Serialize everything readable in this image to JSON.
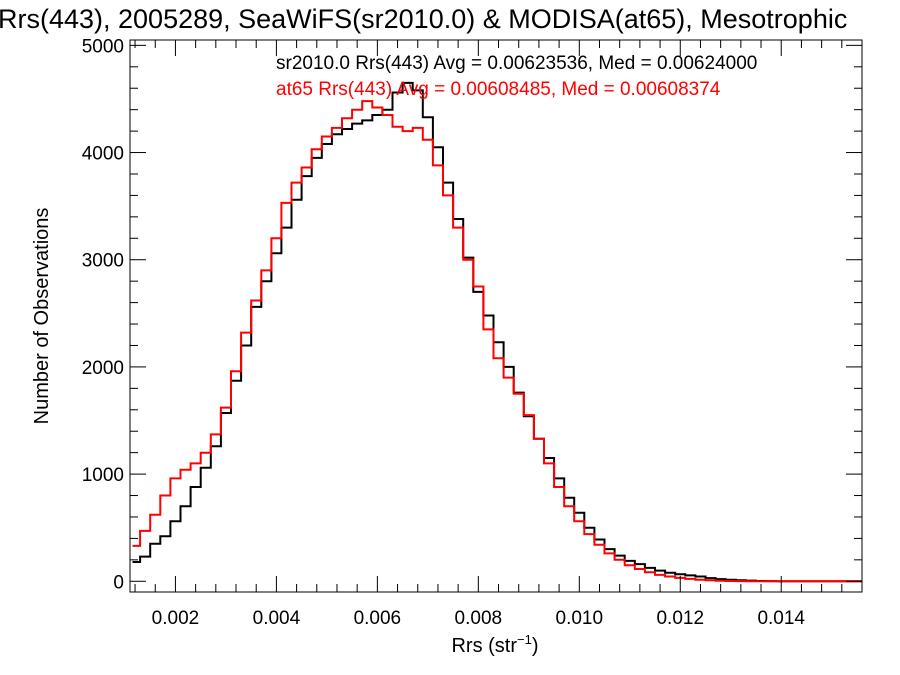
{
  "chart_data": {
    "type": "line",
    "title": "Rrs(443), 2005289, SeaWiFS(sr2010.0) & MODISA(at65), Mesotrophic",
    "xlabel": "Rrs (str",
    "xlabel_sup": "−1",
    "xlabel_end": ")",
    "ylabel": "Number of Observations",
    "xlim": [
      0.0011,
      0.0156
    ],
    "ylim": [
      -100,
      5050
    ],
    "xticks": [
      {
        "value": 0.002,
        "label": "0.002"
      },
      {
        "value": 0.004,
        "label": "0.004"
      },
      {
        "value": 0.006,
        "label": "0.006"
      },
      {
        "value": 0.008,
        "label": "0.008"
      },
      {
        "value": 0.01,
        "label": "0.010"
      },
      {
        "value": 0.012,
        "label": "0.012"
      },
      {
        "value": 0.014,
        "label": "0.014"
      }
    ],
    "yticks": [
      {
        "value": 0,
        "label": "0"
      },
      {
        "value": 1000,
        "label": "1000"
      },
      {
        "value": 2000,
        "label": "2000"
      },
      {
        "value": 3000,
        "label": "3000"
      },
      {
        "value": 4000,
        "label": "4000"
      },
      {
        "value": 5000,
        "label": "5000"
      }
    ],
    "annotations": [
      {
        "text": "sr2010.0 Rrs(443) Avg = 0.00623536, Med = 0.00624000",
        "color": "#000000"
      },
      {
        "text": "at65 Rrs(443) Avg = 0.00608485, Med = 0.00608374",
        "color": "#ff0000"
      }
    ],
    "series": [
      {
        "color": "#000000",
        "points": [
          [
            0.00115,
            180
          ],
          [
            0.0013,
            230
          ],
          [
            0.0015,
            350
          ],
          [
            0.0017,
            420
          ],
          [
            0.0019,
            560
          ],
          [
            0.0021,
            700
          ],
          [
            0.0023,
            880
          ],
          [
            0.0025,
            1060
          ],
          [
            0.0027,
            1260
          ],
          [
            0.0029,
            1570
          ],
          [
            0.0031,
            1870
          ],
          [
            0.0033,
            2200
          ],
          [
            0.0035,
            2560
          ],
          [
            0.0037,
            2800
          ],
          [
            0.0039,
            3060
          ],
          [
            0.0041,
            3300
          ],
          [
            0.0043,
            3560
          ],
          [
            0.0045,
            3780
          ],
          [
            0.0047,
            3950
          ],
          [
            0.0049,
            4080
          ],
          [
            0.0051,
            4170
          ],
          [
            0.0053,
            4220
          ],
          [
            0.0055,
            4270
          ],
          [
            0.0057,
            4300
          ],
          [
            0.0059,
            4350
          ],
          [
            0.0061,
            4400
          ],
          [
            0.0063,
            4560
          ],
          [
            0.0065,
            4650
          ],
          [
            0.0067,
            4580
          ],
          [
            0.0069,
            4330
          ],
          [
            0.0071,
            4050
          ],
          [
            0.0073,
            3720
          ],
          [
            0.0075,
            3380
          ],
          [
            0.0077,
            3020
          ],
          [
            0.0079,
            2700
          ],
          [
            0.0081,
            2480
          ],
          [
            0.0083,
            2230
          ],
          [
            0.0085,
            2000
          ],
          [
            0.0087,
            1760
          ],
          [
            0.0089,
            1540
          ],
          [
            0.0091,
            1330
          ],
          [
            0.0093,
            1150
          ],
          [
            0.0095,
            960
          ],
          [
            0.0097,
            780
          ],
          [
            0.0099,
            640
          ],
          [
            0.0101,
            500
          ],
          [
            0.0103,
            390
          ],
          [
            0.0105,
            300
          ],
          [
            0.0107,
            240
          ],
          [
            0.0109,
            190
          ],
          [
            0.0111,
            160
          ],
          [
            0.0113,
            125
          ],
          [
            0.0115,
            100
          ],
          [
            0.0117,
            80
          ],
          [
            0.0119,
            65
          ],
          [
            0.0121,
            55
          ],
          [
            0.0123,
            45
          ],
          [
            0.0125,
            30
          ],
          [
            0.0127,
            20
          ],
          [
            0.0129,
            15
          ],
          [
            0.0131,
            10
          ],
          [
            0.0133,
            6
          ],
          [
            0.0135,
            3
          ],
          [
            0.0137,
            2
          ],
          [
            0.0139,
            1
          ],
          [
            0.0141,
            1
          ],
          [
            0.0143,
            0
          ],
          [
            0.0145,
            0
          ],
          [
            0.0147,
            0
          ],
          [
            0.0149,
            0
          ],
          [
            0.0151,
            0
          ],
          [
            0.0153,
            0
          ],
          [
            0.0155,
            0
          ]
        ]
      },
      {
        "color": "#ff0000",
        "points": [
          [
            0.00115,
            330
          ],
          [
            0.0013,
            470
          ],
          [
            0.0015,
            620
          ],
          [
            0.0017,
            800
          ],
          [
            0.0019,
            960
          ],
          [
            0.0021,
            1040
          ],
          [
            0.0023,
            1100
          ],
          [
            0.0025,
            1200
          ],
          [
            0.0027,
            1370
          ],
          [
            0.0029,
            1620
          ],
          [
            0.0031,
            1960
          ],
          [
            0.0033,
            2320
          ],
          [
            0.0035,
            2620
          ],
          [
            0.0037,
            2900
          ],
          [
            0.0039,
            3200
          ],
          [
            0.0041,
            3530
          ],
          [
            0.0043,
            3720
          ],
          [
            0.0045,
            3860
          ],
          [
            0.0047,
            4030
          ],
          [
            0.0049,
            4150
          ],
          [
            0.0051,
            4230
          ],
          [
            0.0053,
            4320
          ],
          [
            0.0055,
            4400
          ],
          [
            0.0057,
            4480
          ],
          [
            0.0059,
            4420
          ],
          [
            0.0061,
            4350
          ],
          [
            0.0063,
            4240
          ],
          [
            0.0065,
            4200
          ],
          [
            0.0067,
            4230
          ],
          [
            0.0069,
            4120
          ],
          [
            0.0071,
            3880
          ],
          [
            0.0073,
            3600
          ],
          [
            0.0075,
            3300
          ],
          [
            0.0077,
            3000
          ],
          [
            0.0079,
            2750
          ],
          [
            0.0081,
            2350
          ],
          [
            0.0083,
            2080
          ],
          [
            0.0085,
            1900
          ],
          [
            0.0087,
            1750
          ],
          [
            0.0089,
            1550
          ],
          [
            0.0091,
            1330
          ],
          [
            0.0093,
            1100
          ],
          [
            0.0095,
            880
          ],
          [
            0.0097,
            700
          ],
          [
            0.0099,
            560
          ],
          [
            0.0101,
            440
          ],
          [
            0.0103,
            340
          ],
          [
            0.0105,
            260
          ],
          [
            0.0107,
            200
          ],
          [
            0.0109,
            150
          ],
          [
            0.0111,
            115
          ],
          [
            0.0113,
            85
          ],
          [
            0.0115,
            60
          ],
          [
            0.0117,
            45
          ],
          [
            0.0119,
            32
          ],
          [
            0.0121,
            22
          ],
          [
            0.0123,
            14
          ],
          [
            0.0125,
            9
          ],
          [
            0.0127,
            5
          ],
          [
            0.0129,
            3
          ],
          [
            0.0131,
            2
          ],
          [
            0.0133,
            1
          ],
          [
            0.0135,
            0
          ],
          [
            0.0137,
            0
          ],
          [
            0.0139,
            0
          ],
          [
            0.0141,
            0
          ],
          [
            0.0143,
            0
          ],
          [
            0.0145,
            0
          ],
          [
            0.0147,
            0
          ],
          [
            0.0149,
            0
          ],
          [
            0.0151,
            0
          ],
          [
            0.0153,
            0
          ],
          [
            0.0155,
            0
          ]
        ]
      }
    ]
  }
}
